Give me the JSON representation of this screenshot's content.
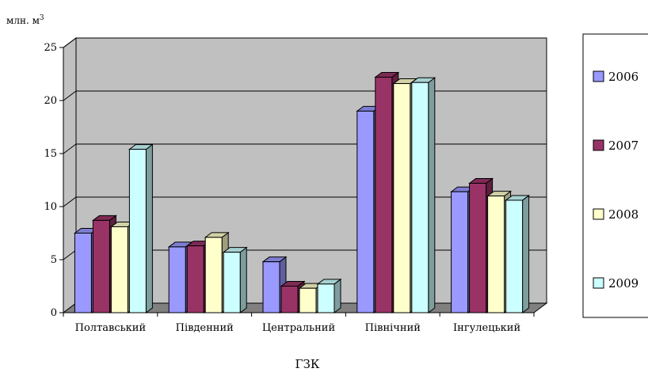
{
  "chart_data": {
    "type": "bar",
    "style": "3d-clustered-column",
    "ylabel": "млн. м",
    "ylabel_superscript": "3",
    "xlabel": "ГЗК",
    "ylim": [
      0,
      25
    ],
    "y_ticks": [
      "0",
      "5",
      "10",
      "15",
      "20",
      "25"
    ],
    "grid": true,
    "legend_position": "right",
    "categories": [
      "Полтавський",
      "Південний",
      "Центральний",
      "Північний",
      "Інгулецький"
    ],
    "series": [
      {
        "name": "2006",
        "color": "#9999FF",
        "values": [
          7.5,
          6.2,
          4.8,
          19.0,
          11.4
        ]
      },
      {
        "name": "2007",
        "color": "#993366",
        "values": [
          8.7,
          6.3,
          2.5,
          22.2,
          12.2
        ]
      },
      {
        "name": "2008",
        "color": "#FFFFCC",
        "values": [
          8.1,
          7.1,
          2.3,
          21.6,
          11.0
        ]
      },
      {
        "name": "2009",
        "color": "#CCFFFF",
        "values": [
          15.4,
          5.7,
          2.7,
          21.7,
          10.6
        ]
      }
    ]
  },
  "colors": {
    "plot_background": "#C0C0C0",
    "floor": "#808080",
    "gridline": "#000000"
  }
}
